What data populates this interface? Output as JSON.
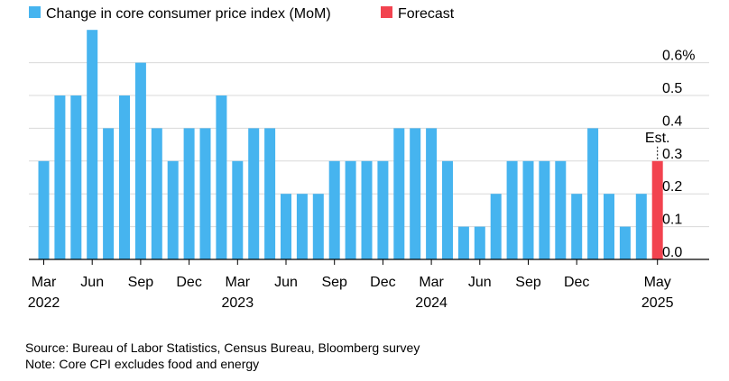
{
  "chart_data": {
    "type": "bar",
    "legend": [
      {
        "label": "Change in core consumer price index (MoM)",
        "color": "#46b4ef"
      },
      {
        "label": "Forecast",
        "color": "#f2434f"
      }
    ],
    "categories": [
      "Mar 2022",
      "Apr 2022",
      "May 2022",
      "Jun 2022",
      "Jul 2022",
      "Aug 2022",
      "Sep 2022",
      "Oct 2022",
      "Nov 2022",
      "Dec 2022",
      "Jan 2023",
      "Feb 2023",
      "Mar 2023",
      "Apr 2023",
      "May 2023",
      "Jun 2023",
      "Jul 2023",
      "Aug 2023",
      "Sep 2023",
      "Oct 2023",
      "Nov 2023",
      "Dec 2023",
      "Jan 2024",
      "Feb 2024",
      "Mar 2024",
      "Apr 2024",
      "May 2024",
      "Jun 2024",
      "Jul 2024",
      "Aug 2024",
      "Sep 2024",
      "Oct 2024",
      "Nov 2024",
      "Dec 2024",
      "Jan 2025",
      "Feb 2025",
      "Mar 2025",
      "Apr 2025",
      "May 2025"
    ],
    "series": [
      {
        "name": "Change in core consumer price index (MoM)",
        "values": [
          0.3,
          0.5,
          0.5,
          0.7,
          0.4,
          0.5,
          0.6,
          0.4,
          0.3,
          0.4,
          0.4,
          0.5,
          0.3,
          0.4,
          0.4,
          0.2,
          0.2,
          0.2,
          0.3,
          0.3,
          0.3,
          0.3,
          0.4,
          0.4,
          0.4,
          0.3,
          0.1,
          0.1,
          0.2,
          0.3,
          0.3,
          0.3,
          0.3,
          0.2,
          0.4,
          0.2,
          0.1,
          0.2,
          null
        ]
      },
      {
        "name": "Forecast",
        "values": [
          null,
          null,
          null,
          null,
          null,
          null,
          null,
          null,
          null,
          null,
          null,
          null,
          null,
          null,
          null,
          null,
          null,
          null,
          null,
          null,
          null,
          null,
          null,
          null,
          null,
          null,
          null,
          null,
          null,
          null,
          null,
          null,
          null,
          null,
          null,
          null,
          null,
          null,
          0.3
        ]
      }
    ],
    "y_ticks": [
      {
        "value": 0.0,
        "label": "0.0"
      },
      {
        "value": 0.1,
        "label": "0.1"
      },
      {
        "value": 0.2,
        "label": "0.2"
      },
      {
        "value": 0.3,
        "label": "0.3"
      },
      {
        "value": 0.4,
        "label": "0.4"
      },
      {
        "value": 0.5,
        "label": "0.5"
      },
      {
        "value": 0.6,
        "label": "0.6%"
      }
    ],
    "x_ticks": [
      {
        "index": 0,
        "month": "Mar",
        "year": "2022"
      },
      {
        "index": 3,
        "month": "Jun",
        "year": ""
      },
      {
        "index": 6,
        "month": "Sep",
        "year": ""
      },
      {
        "index": 9,
        "month": "Dec",
        "year": ""
      },
      {
        "index": 12,
        "month": "Mar",
        "year": "2023"
      },
      {
        "index": 15,
        "month": "Jun",
        "year": ""
      },
      {
        "index": 18,
        "month": "Sep",
        "year": ""
      },
      {
        "index": 21,
        "month": "Dec",
        "year": ""
      },
      {
        "index": 24,
        "month": "Mar",
        "year": "2024"
      },
      {
        "index": 27,
        "month": "Jun",
        "year": ""
      },
      {
        "index": 30,
        "month": "Sep",
        "year": ""
      },
      {
        "index": 33,
        "month": "Dec",
        "year": ""
      },
      {
        "index": 38,
        "month": "May",
        "year": "2025"
      }
    ],
    "annotation": {
      "index": 38,
      "text": "Est."
    },
    "ylim": [
      0,
      0.7
    ],
    "grid": true,
    "axis_color": "#000000",
    "grid_color": "#d9d9d9"
  },
  "footer": {
    "source": "Source: Bureau of Labor Statistics, Census Bureau, Bloomberg survey",
    "note": "Note: Core CPI excludes food and energy"
  }
}
